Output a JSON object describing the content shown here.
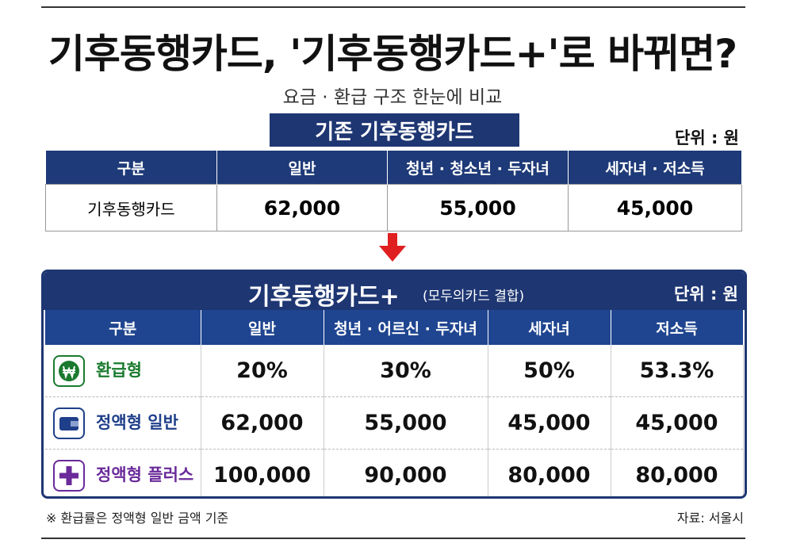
{
  "header": {
    "title": "기후동행카드, '기후동행카드+'로 바뀌면?",
    "subtitle": "요금 · 환급 구조 한눈에 비교"
  },
  "table1": {
    "title": "기존 기후동행카드",
    "unit": "단위 : 원",
    "header": [
      "구분",
      "일반",
      "청년 · 청소년 · 두자녀",
      "세자녀 · 저소득"
    ],
    "rows": [
      [
        "기후동행카드",
        "62,000",
        "55,000",
        "45,000"
      ]
    ]
  },
  "table2": {
    "title": "기후동행카드+",
    "subtitle": "(모두의카드 결합)",
    "unit": "단위 : 원",
    "header": [
      "구분",
      "일반",
      "청년 · 어르신 · 두자녀",
      "세자녀",
      "저소득"
    ],
    "rows": [
      [
        "환급형",
        "20%",
        "30%",
        "50%",
        "53.3%"
      ],
      [
        "정액형 일반",
        "62,000",
        "55,000",
        "45,000",
        "45,000"
      ],
      [
        "정액형 플러스",
        "100,000",
        "90,000",
        "80,000",
        "80,000"
      ]
    ]
  },
  "footer": {
    "note": "※ 환급률은 정액형 일반 금액 기준",
    "source": "자료: 서울시"
  }
}
